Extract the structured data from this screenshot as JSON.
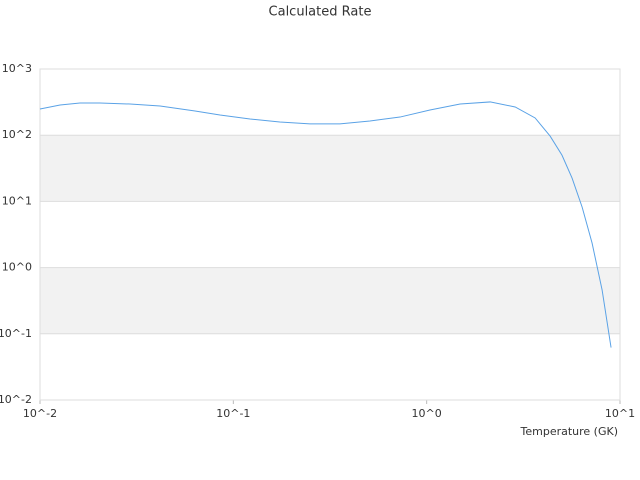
{
  "chart_data": {
    "type": "line",
    "title": "Calculated Rate",
    "xlabel": "Temperature (GK)",
    "xscale": "log",
    "yscale": "log",
    "grid": "bands",
    "x": [
      0.01,
      0.0127,
      0.0161,
      0.0204,
      0.0292,
      0.0418,
      0.0634,
      0.0853,
      0.122,
      0.174,
      0.249,
      0.356,
      0.509,
      0.728,
      1.04,
      1.49,
      2.13,
      2.87,
      3.64,
      4.35,
      5.01,
      5.65,
      6.37,
      7.17,
      8.08,
      8.99
    ],
    "series": [
      {
        "color": "#5aa2e6",
        "values": [
          249,
          286,
          306,
          306,
          296,
          276,
          232,
          202,
          176,
          158,
          148,
          148,
          164,
          188,
          240,
          296,
          318,
          267,
          182,
          97,
          50,
          22.5,
          8.2,
          2.35,
          0.46,
          0.062
        ]
      }
    ],
    "xlim": [
      0.01,
      10
    ],
    "ylim": [
      0.01,
      1000
    ],
    "xticks": [
      {
        "value": 0.01,
        "label": "10^-2"
      },
      {
        "value": 0.1,
        "label": "10^-1"
      },
      {
        "value": 1,
        "label": "10^0"
      },
      {
        "value": 10,
        "label": "10^1"
      }
    ],
    "yticks": [
      {
        "value": 0.01,
        "label": "10^-2"
      },
      {
        "value": 0.1,
        "label": "10^-1"
      },
      {
        "value": 1,
        "label": "10^0"
      },
      {
        "value": 10,
        "label": "10^1"
      },
      {
        "value": 100,
        "label": "10^2"
      },
      {
        "value": 1000,
        "label": "10^3"
      }
    ]
  }
}
